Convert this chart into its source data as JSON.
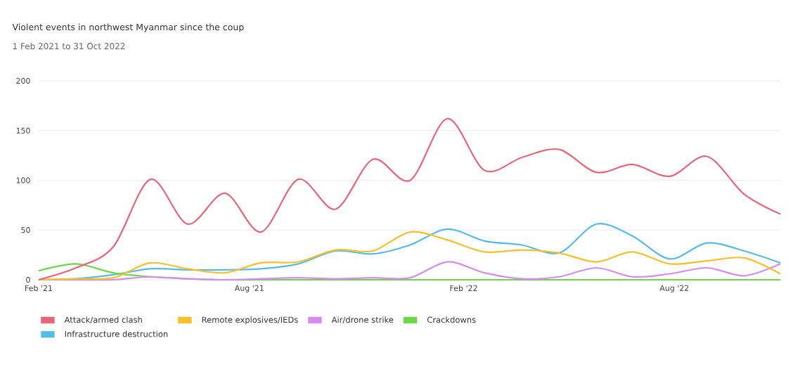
{
  "chart_data": {
    "type": "line",
    "title": "Violent events in northwest Myanmar since the coup",
    "subtitle": "1 Feb 2021 to 31 Oct 2022",
    "x": [
      "2021-02-01",
      "2021-03-05",
      "2021-04-06",
      "2021-05-08",
      "2021-06-09",
      "2021-07-11",
      "2021-08-11",
      "2021-09-12",
      "2021-10-14",
      "2021-11-15",
      "2021-12-17",
      "2022-01-18",
      "2022-02-19",
      "2022-03-23",
      "2022-04-24",
      "2022-05-26",
      "2022-06-26",
      "2022-07-28",
      "2022-08-29",
      "2022-09-30",
      "2022-10-31"
    ],
    "xlim": [
      "2021-02-01",
      "2022-10-31"
    ],
    "xticks": [
      {
        "value": "2021-02-01",
        "label": "Feb '21"
      },
      {
        "value": "2021-08-01",
        "label": "Aug '21"
      },
      {
        "value": "2022-02-01",
        "label": "Feb '22"
      },
      {
        "value": "2022-08-01",
        "label": "Aug '22"
      }
    ],
    "ylim": [
      0,
      200
    ],
    "yticks": [
      0,
      50,
      100,
      150,
      200
    ],
    "grid": "y",
    "legend": "bottom",
    "series": [
      {
        "name": "Attack/armed clash",
        "color": "#e8667a",
        "values": [
          0,
          12,
          33,
          101,
          56,
          87,
          48,
          101,
          71,
          121,
          100,
          162,
          110,
          123,
          131,
          108,
          116,
          104,
          124,
          86,
          66
        ]
      },
      {
        "name": "Remote explosives/IEDs",
        "color": "#f5c02a",
        "values": [
          0,
          1,
          2,
          17,
          11,
          7,
          17,
          18,
          30,
          29,
          48,
          40,
          28,
          30,
          27,
          18,
          28,
          16,
          19,
          22,
          6
        ]
      },
      {
        "name": "Air/drone strike",
        "color": "#d58cf0",
        "values": [
          0,
          0,
          0,
          3,
          1,
          0,
          1,
          2,
          1,
          2,
          2,
          18,
          7,
          1,
          3,
          12,
          3,
          6,
          12,
          4,
          16
        ]
      },
      {
        "name": "Crackdowns",
        "color": "#6fd64a",
        "values": [
          9,
          16,
          7,
          3,
          1,
          0,
          0,
          0,
          0,
          0,
          0,
          0,
          0,
          0,
          0,
          0,
          0,
          0,
          0,
          0,
          0
        ]
      },
      {
        "name": "Infrastructure destruction",
        "color": "#55bbea",
        "values": [
          0,
          1,
          5,
          11,
          10,
          10,
          11,
          16,
          29,
          26,
          35,
          51,
          39,
          35,
          27,
          56,
          44,
          21,
          37,
          29,
          17
        ]
      }
    ]
  }
}
